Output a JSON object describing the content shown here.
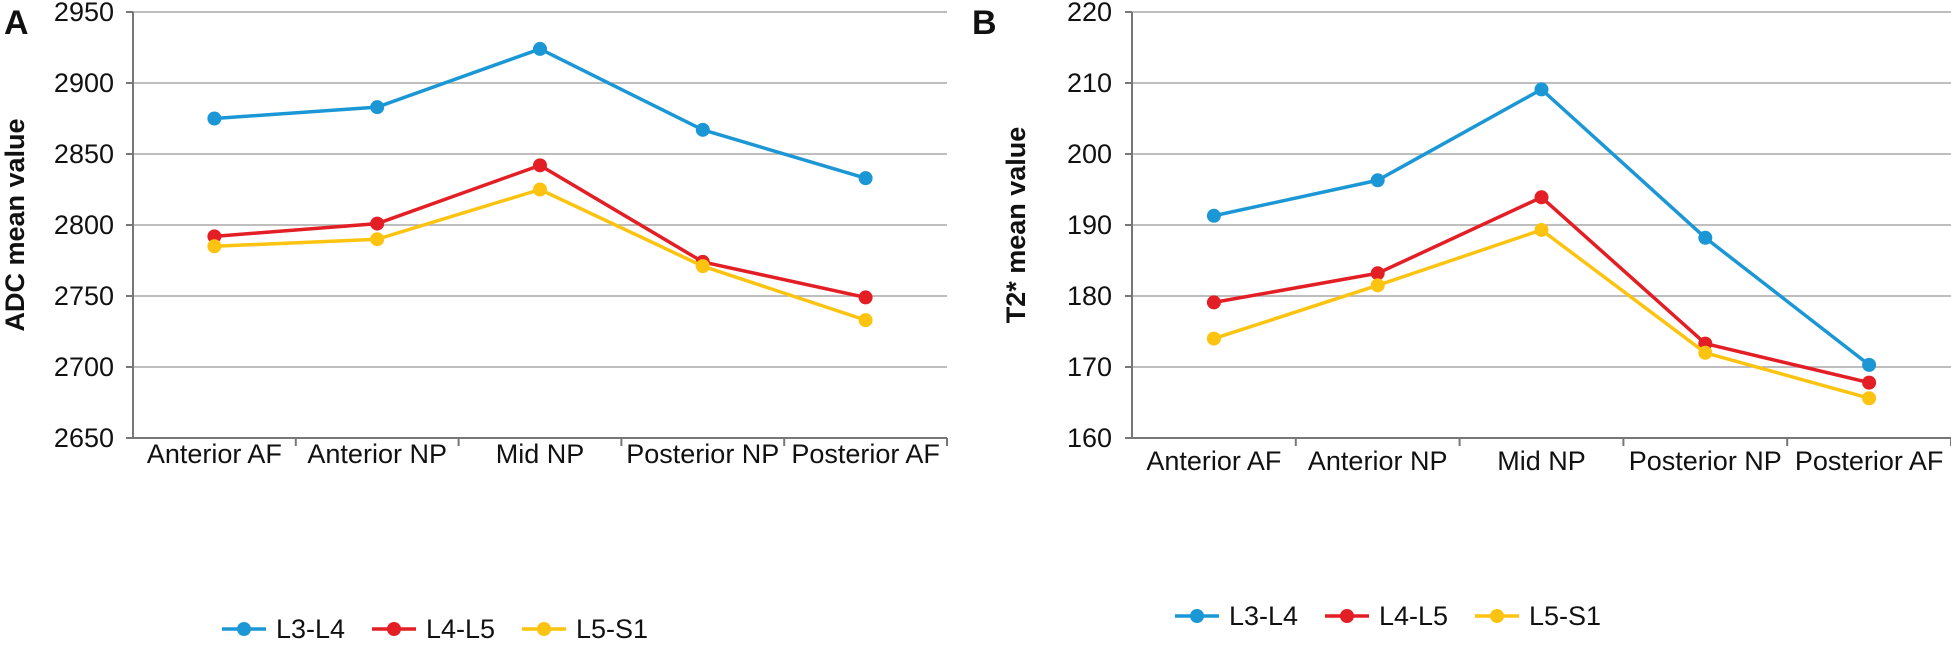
{
  "chart_data": [
    {
      "type": "line",
      "panel_label": "A",
      "categories": [
        "Anterior AF",
        "Anterior NP",
        "Mid NP",
        "Posterior NP",
        "Posterior AF"
      ],
      "ylabel": "ADC mean value",
      "xlabel": "",
      "ylim": [
        2650,
        2950
      ],
      "yticks": [
        2650,
        2700,
        2750,
        2800,
        2850,
        2900,
        2950
      ],
      "grid": true,
      "legend_position": "bottom",
      "series": [
        {
          "name": "L3-L4",
          "color": "#1c97d6",
          "values": [
            2875,
            2883,
            2924,
            2867,
            2833
          ]
        },
        {
          "name": "L4-L5",
          "color": "#e31e24",
          "values": [
            2792,
            2801,
            2842,
            2774,
            2749
          ]
        },
        {
          "name": "L5-S1",
          "color": "#fcc410",
          "values": [
            2785,
            2790,
            2825,
            2771,
            2733
          ]
        }
      ]
    },
    {
      "type": "line",
      "panel_label": "B",
      "categories": [
        "Anterior AF",
        "Anterior NP",
        "Mid NP",
        "Posterior NP",
        "Posterior AF"
      ],
      "ylabel": "T2* mean value",
      "xlabel": "",
      "ylim": [
        160,
        220
      ],
      "yticks": [
        160,
        170,
        180,
        190,
        200,
        210,
        220
      ],
      "grid": true,
      "legend_position": "bottom",
      "series": [
        {
          "name": "L3-L4",
          "color": "#1c97d6",
          "values": [
            191.3,
            196.3,
            209.1,
            188.2,
            170.3
          ]
        },
        {
          "name": "L4-L5",
          "color": "#e31e24",
          "values": [
            179.1,
            183.2,
            193.9,
            173.3,
            167.8
          ]
        },
        {
          "name": "L5-S1",
          "color": "#fcc410",
          "values": [
            174.0,
            181.5,
            189.3,
            172.0,
            165.6
          ]
        }
      ]
    }
  ]
}
